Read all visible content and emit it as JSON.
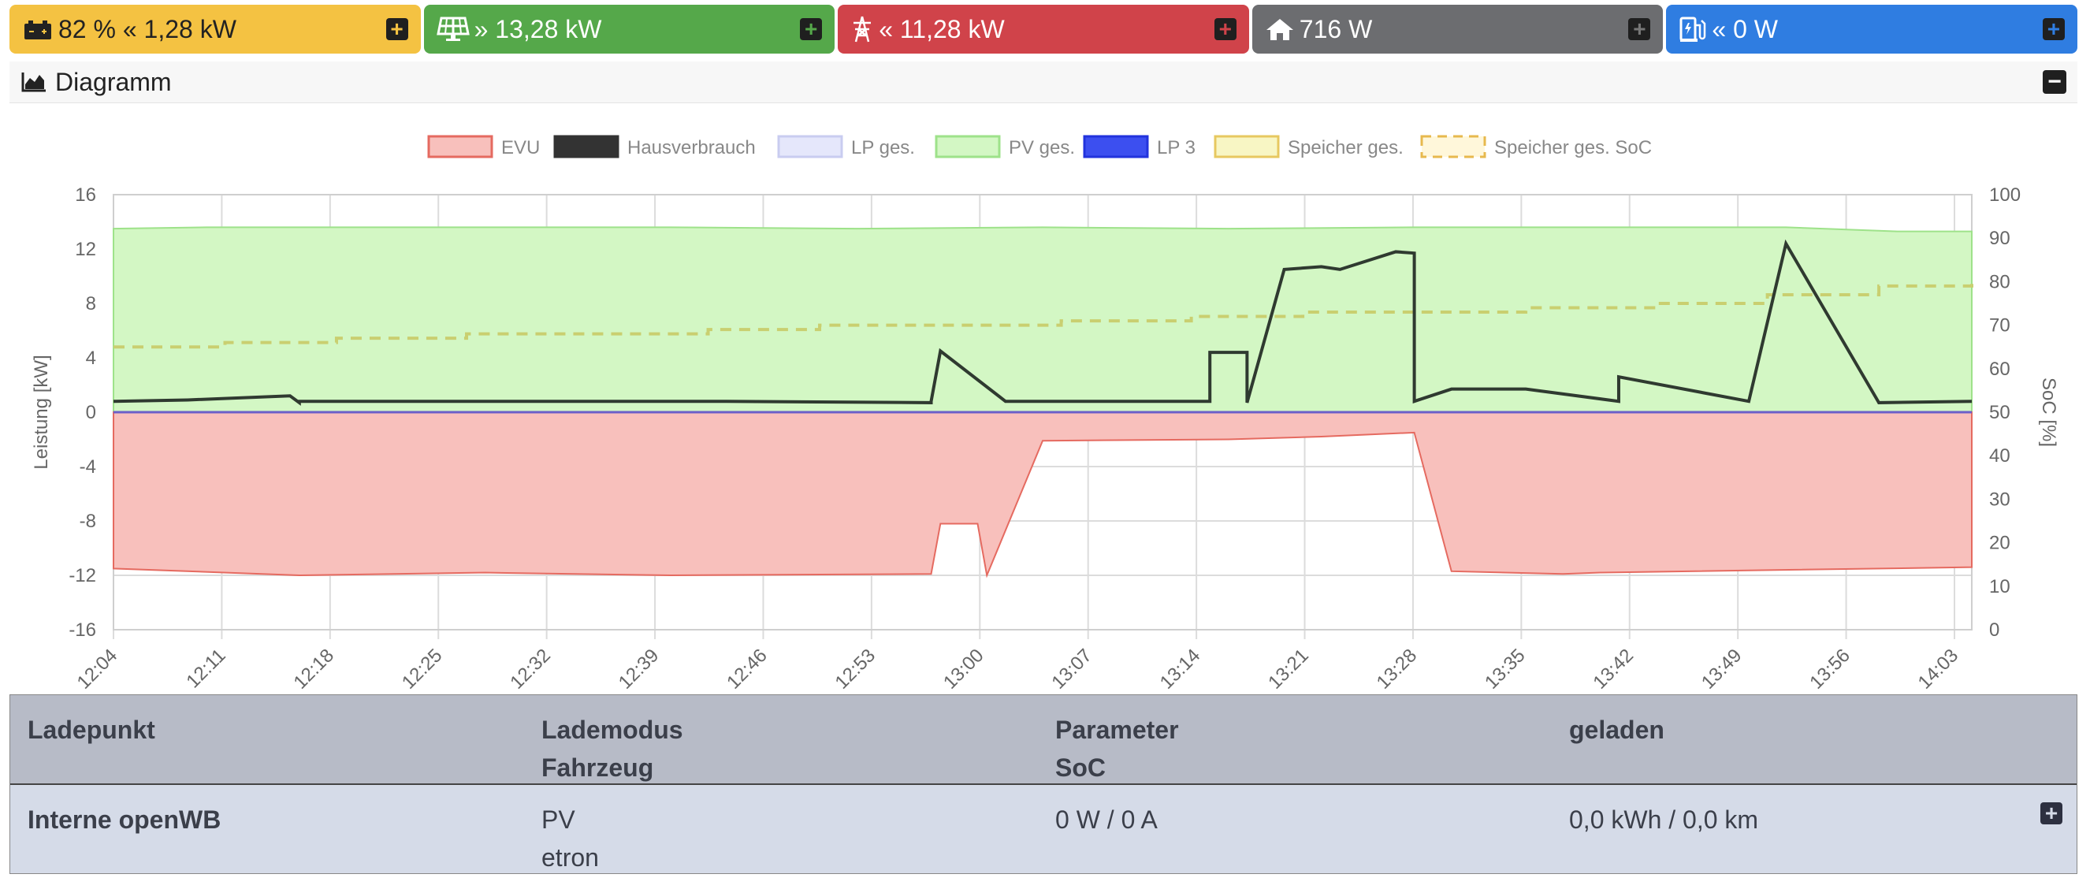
{
  "status_tiles": [
    {
      "icon": "battery-icon",
      "value": "82 % « 1,28 kW",
      "color": "#f4c242"
    },
    {
      "icon": "solar-panel-icon",
      "value": "» 13,28 kW",
      "color": "#55a84a"
    },
    {
      "icon": "power-pylon-icon",
      "value": "« 11,28 kW",
      "color": "#d0434a"
    },
    {
      "icon": "house-icon",
      "value": "716 W",
      "color": "#6c6d70"
    },
    {
      "icon": "charging-station-icon",
      "value": "« 0 W",
      "color": "#2f7de1"
    }
  ],
  "diagram": {
    "title": "Diagramm"
  },
  "chart_data": {
    "type": "area",
    "legend": [
      {
        "name": "EVU",
        "color": "#f8c0bc"
      },
      {
        "name": "Hausverbrauch",
        "color": "#333333"
      },
      {
        "name": "LP ges.",
        "color": "#e5e7fb"
      },
      {
        "name": "PV ges.",
        "color": "#d3f7c4"
      },
      {
        "name": "LP 3",
        "color": "#3c4ff0"
      },
      {
        "name": "Speicher ges.",
        "color": "#f8f6c4"
      },
      {
        "name": "Speicher ges. SoC",
        "color": "#e7b94d"
      }
    ],
    "ylabel": "Leistung [kW]",
    "y2label": "SoC [%]",
    "ylim": [
      -16,
      16
    ],
    "y2lim": [
      0,
      100
    ],
    "y_ticks": [
      "16",
      "12",
      "8",
      "4",
      "0",
      "-4",
      "-8",
      "-12",
      "-16"
    ],
    "y2_ticks": [
      "100",
      "90",
      "80",
      "70",
      "60",
      "50",
      "40",
      "30",
      "20",
      "10",
      "0"
    ],
    "x_ticks": [
      "12:04",
      "12:11",
      "12:18",
      "12:25",
      "12:32",
      "12:39",
      "12:46",
      "12:53",
      "13:00",
      "13:07",
      "13:14",
      "13:21",
      "13:28",
      "13:35",
      "13:42",
      "13:49",
      "13:56",
      "14:03"
    ],
    "series": [
      {
        "name": "PV ges.",
        "x": [
          0,
          0.05,
          0.1,
          0.2,
          0.3,
          0.4,
          0.5,
          0.6,
          0.7,
          0.8,
          0.9,
          0.96,
          1
        ],
        "values": [
          13.5,
          13.6,
          13.6,
          13.6,
          13.6,
          13.5,
          13.6,
          13.5,
          13.6,
          13.6,
          13.6,
          13.3,
          13.3
        ]
      },
      {
        "name": "Hausverbrauch",
        "x": [
          0,
          0.04,
          0.095,
          0.1,
          0.1,
          0.33,
          0.44,
          0.44,
          0.44,
          0.445,
          0.445,
          0.48,
          0.51,
          0.59,
          0.59,
          0.61,
          0.61,
          0.63,
          0.63,
          0.65,
          0.66,
          0.69,
          0.7,
          0.7,
          0.72,
          0.76,
          0.81,
          0.81,
          0.88,
          0.9,
          0.95,
          1
        ],
        "values": [
          0.8,
          0.9,
          1.2,
          0.7,
          0.8,
          0.8,
          0.7,
          0.8,
          0.8,
          4.5,
          4.5,
          0.8,
          0.8,
          0.8,
          4.4,
          4.4,
          0.7,
          10.5,
          10.5,
          10.7,
          10.5,
          11.8,
          11.7,
          0.8,
          1.7,
          1.7,
          0.8,
          2.6,
          0.8,
          12.4,
          0.7,
          0.8
        ]
      },
      {
        "name": "EVU",
        "x": [
          0,
          0.1,
          0.2,
          0.3,
          0.44,
          0.445,
          0.465,
          0.47,
          0.5,
          0.6,
          0.65,
          0.7,
          0.72,
          0.78,
          0.8,
          1
        ],
        "values": [
          -11.5,
          -12,
          -11.8,
          -12,
          -11.9,
          -8.2,
          -8.2,
          -12,
          -2.1,
          -2,
          -1.8,
          -1.5,
          -11.7,
          -11.9,
          -11.8,
          -11.4
        ]
      },
      {
        "name": "Speicher ges. SoC",
        "x": [
          0,
          0.06,
          0.12,
          0.19,
          0.25,
          0.32,
          0.38,
          0.45,
          0.51,
          0.58,
          0.64,
          0.7,
          0.76,
          0.83,
          0.89,
          0.95,
          1
        ],
        "values": [
          65,
          66,
          67,
          68,
          68,
          69,
          70,
          70,
          71,
          72,
          73,
          73,
          74,
          75,
          77,
          79,
          81
        ]
      },
      {
        "name": "LP 3",
        "values": [
          0,
          0
        ]
      }
    ]
  },
  "table": {
    "headers": [
      {
        "line1": "Ladepunkt",
        "line2": ""
      },
      {
        "line1": "Lademodus",
        "line2": "Fahrzeug"
      },
      {
        "line1": "Parameter",
        "line2": "SoC"
      },
      {
        "line1": "geladen",
        "line2": ""
      }
    ],
    "rows": [
      {
        "ladepunkt": "Interne openWB",
        "lademodus": "PV",
        "fahrzeug": "etron",
        "parameter": "0 W / 0 A",
        "soc": "",
        "geladen": "0,0 kWh / 0,0 km"
      }
    ]
  }
}
